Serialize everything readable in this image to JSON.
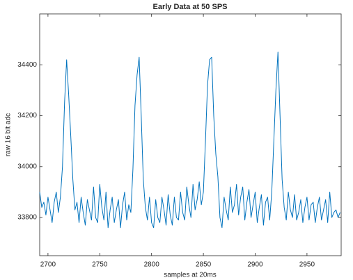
{
  "chart_data": {
    "type": "line",
    "title": "Early Data at 50 SPS",
    "x_label": "samples at 20ms",
    "y_label": "raw 16 bit adc",
    "x": [
      2692,
      2694,
      2696,
      2698,
      2700,
      2702,
      2704,
      2706,
      2708,
      2710,
      2712,
      2714,
      2716,
      2718,
      2720,
      2722,
      2724,
      2726,
      2728,
      2730,
      2732,
      2734,
      2736,
      2738,
      2740,
      2742,
      2744,
      2746,
      2748,
      2750,
      2752,
      2754,
      2756,
      2758,
      2760,
      2762,
      2764,
      2766,
      2768,
      2770,
      2772,
      2774,
      2776,
      2778,
      2780,
      2782,
      2784,
      2786,
      2788,
      2790,
      2792,
      2794,
      2796,
      2798,
      2800,
      2802,
      2804,
      2806,
      2808,
      2810,
      2812,
      2814,
      2816,
      2818,
      2820,
      2822,
      2824,
      2826,
      2828,
      2830,
      2832,
      2834,
      2836,
      2838,
      2840,
      2842,
      2844,
      2846,
      2848,
      2850,
      2852,
      2854,
      2856,
      2858,
      2860,
      2862,
      2864,
      2866,
      2868,
      2870,
      2872,
      2874,
      2876,
      2878,
      2880,
      2882,
      2884,
      2886,
      2888,
      2890,
      2892,
      2894,
      2896,
      2898,
      2900,
      2902,
      2904,
      2906,
      2908,
      2910,
      2912,
      2914,
      2916,
      2918,
      2920,
      2922,
      2924,
      2926,
      2928,
      2930,
      2932,
      2934,
      2936,
      2938,
      2940,
      2942,
      2944,
      2946,
      2948,
      2950,
      2952,
      2954,
      2956,
      2958,
      2960,
      2962,
      2964,
      2966,
      2968,
      2970,
      2972,
      2974,
      2976,
      2978,
      2980,
      2982
    ],
    "series": [
      {
        "name": "raw",
        "color": "#0072bd",
        "values": [
          33900,
          33840,
          33860,
          33810,
          33880,
          33830,
          33780,
          33860,
          33900,
          33820,
          33880,
          34000,
          34250,
          34420,
          34280,
          34120,
          33950,
          33830,
          33860,
          33780,
          33880,
          33820,
          33770,
          33870,
          33830,
          33790,
          33920,
          33800,
          33780,
          33930,
          33840,
          33790,
          33900,
          33760,
          33830,
          33880,
          33780,
          33830,
          33870,
          33760,
          33850,
          33900,
          33790,
          33850,
          33820,
          33990,
          34240,
          34360,
          34430,
          34200,
          33950,
          33840,
          33790,
          33880,
          33780,
          33760,
          33870,
          33800,
          33780,
          33880,
          33830,
          33770,
          33890,
          33810,
          33770,
          33880,
          33800,
          33790,
          33900,
          33820,
          33790,
          33920,
          33850,
          33800,
          33930,
          33830,
          33870,
          33940,
          33850,
          33900,
          34100,
          34320,
          34420,
          34430,
          34200,
          34050,
          33960,
          33800,
          33760,
          33880,
          33830,
          33790,
          33920,
          33820,
          33850,
          33930,
          33810,
          33880,
          33920,
          33790,
          33860,
          33910,
          33800,
          33850,
          33900,
          33780,
          33840,
          33890,
          33770,
          33860,
          33880,
          33790,
          33900,
          34100,
          34300,
          34450,
          34200,
          33950,
          33840,
          33790,
          33900,
          33830,
          33800,
          33890,
          33790,
          33820,
          33870,
          33780,
          33840,
          33880,
          33790,
          33850,
          33860,
          33780,
          33840,
          33880,
          33790,
          33830,
          33870,
          33780,
          33900,
          33800,
          33820,
          33830,
          33800,
          33820
        ]
      }
    ],
    "xlim": [
      2692,
      2983
    ],
    "ylim": [
      33650,
      34600
    ],
    "xticks": [
      2700,
      2750,
      2800,
      2850,
      2900,
      2950
    ],
    "yticks": [
      33800,
      34000,
      34200,
      34400
    ]
  }
}
